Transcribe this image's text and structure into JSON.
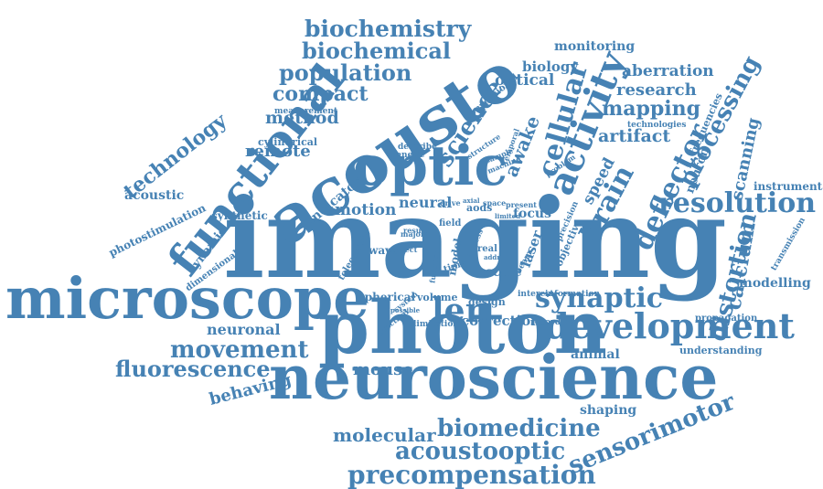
{
  "theme": {
    "word_color": "#4682b4",
    "background": "#ffffff"
  },
  "words": {
    "imaging": "imaging",
    "neuroscience": "neuroscience",
    "photon": "photon",
    "microscope": "microscope",
    "acousto": "acousto",
    "optic": "optic",
    "functional": "functional",
    "activity": "activity",
    "development": "development",
    "resolution": "resolution",
    "biochemistry": "biochemistry",
    "biochemical": "biochemical",
    "population": "population",
    "compact": "compact",
    "method": "method",
    "remote": "remote",
    "technology": "technology",
    "science": "science",
    "cellular": "cellular",
    "brain": "brain",
    "awake": "awake",
    "processing": "processing",
    "deflector": "deflector",
    "mapping": "mapping",
    "research": "research",
    "aberration": "aberration",
    "monitoring": "monitoring",
    "biology": "biology",
    "optical": "optical",
    "artifact": "artifact",
    "speed": "speed",
    "scanning": "scanning",
    "instrumentation": "instrumentation",
    "calcium": "calcium",
    "distortion": "distortion",
    "modelling": "modelling",
    "propagation": "propagation",
    "synaptic": "synaptic",
    "len": "len",
    "correction": "correction",
    "animal": "animal",
    "understanding": "understanding",
    "movement": "movement",
    "fluorescence": "fluorescence",
    "behaving": "behaving",
    "mouse": "mouse",
    "neuronal": "neuronal",
    "molecular": "molecular",
    "biomedicine": "biomedicine",
    "acoustooptic": "acoustooptic",
    "sensorimotor": "sensorimotor",
    "precompensation": "precompensation",
    "shaping": "shaping",
    "motion": "motion",
    "neural": "neural",
    "focus": "focus",
    "acoustic": "acoustic",
    "photostimulation": "photostimulation",
    "synthetic": "synthetic",
    "dynamic": "dynamic",
    "dimensional": "dimensional",
    "indicator": "indicator",
    "cylindrical": "cylindrical",
    "measurement": "measurement",
    "genetic": "genetic",
    "describe": "describe",
    "spherical": "spherical",
    "volume": "volume",
    "design": "design",
    "interest": "interest",
    "information": "information",
    "limitation": "limitation",
    "recording": "recording",
    "wave": "wave",
    "telecentric": "telecentric",
    "field": "field",
    "scale": "scale",
    "laser": "laser",
    "beam": "beam",
    "model": "model",
    "time": "time",
    "aods": "aods",
    "real": "real",
    "conventional": "conventional",
    "neuron": "neuron",
    "frequencies": "frequencies",
    "technologies": "technologies",
    "transmission": "transmission",
    "objective": "objective",
    "precision": "precision",
    "sample": "sample",
    "machine": "machine",
    "problem": "problem",
    "temporal": "temporal",
    "structure": "structure",
    "system": "system",
    "possible": "possible",
    "practical": "practical",
    "correct": "correct",
    "major": "major",
    "result": "result",
    "drive": "drive",
    "axial": "axial",
    "space": "space",
    "present": "present",
    "limited": "limited",
    "addr": "addr",
    "function": "function",
    "access": "access"
  }
}
